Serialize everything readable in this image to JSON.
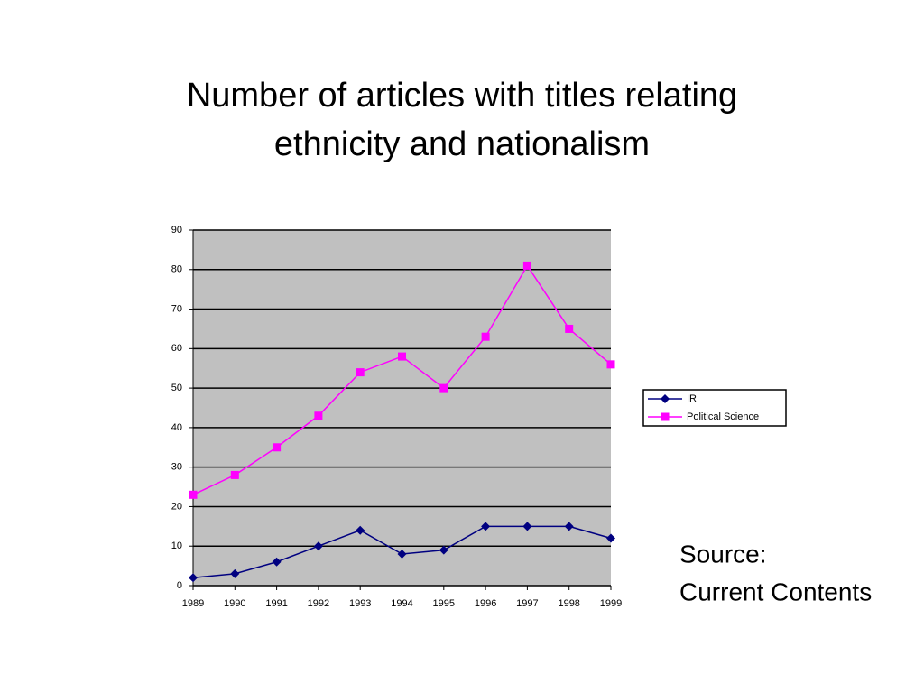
{
  "chart_data": {
    "type": "line",
    "title": [
      "Number of articles with titles relating",
      "ethnicity and nationalism"
    ],
    "x": [
      1989,
      1990,
      1991,
      1992,
      1993,
      1994,
      1995,
      1996,
      1997,
      1998,
      1999
    ],
    "series": [
      {
        "name": "IR",
        "color": "#000080",
        "marker": "diamond",
        "values": [
          2,
          3,
          6,
          10,
          14,
          8,
          9,
          15,
          15,
          15,
          12
        ]
      },
      {
        "name": "Political Science",
        "color": "#ff00ff",
        "marker": "square",
        "values": [
          23,
          28,
          35,
          43,
          54,
          58,
          50,
          63,
          81,
          65,
          56
        ]
      }
    ],
    "xlim": [
      1989,
      1999
    ],
    "xticks": [
      1989,
      1990,
      1991,
      1992,
      1993,
      1994,
      1995,
      1996,
      1997,
      1998,
      1999
    ],
    "ylim": [
      0,
      90
    ],
    "yticks": [
      0,
      10,
      20,
      30,
      40,
      50,
      60,
      70,
      80,
      90
    ],
    "grid": true,
    "plot_background": "#c0c0c0",
    "legend": "right",
    "annotation": [
      "Source:",
      "Current Contents"
    ]
  }
}
